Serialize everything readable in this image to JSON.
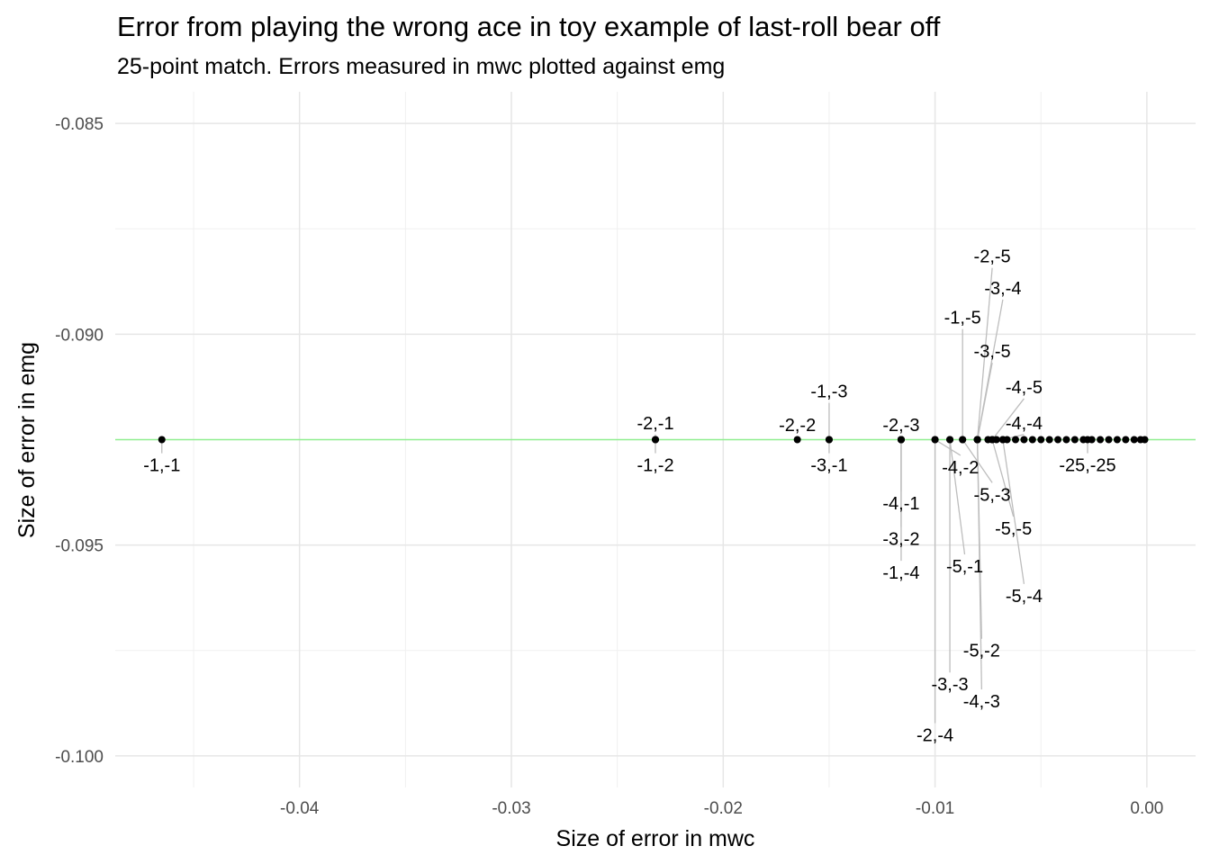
{
  "chart_data": {
    "type": "scatter",
    "title": "Error from playing the wrong ace in toy example of last-roll bear off",
    "subtitle": "25-point match. Errors measured in mwc plotted against emg",
    "xlabel": "Size of error in mwc",
    "ylabel": "Size of error in emg",
    "xlim": [
      -0.0487,
      0.0023
    ],
    "ylim": [
      -0.10075,
      -0.08425
    ],
    "xticks": [
      -0.04,
      -0.03,
      -0.02,
      -0.01,
      0.0
    ],
    "xtick_labels": [
      "-0.04",
      "-0.03",
      "-0.02",
      "-0.01",
      "0.00"
    ],
    "yticks": [
      -0.085,
      -0.09,
      -0.095,
      -0.1
    ],
    "ytick_labels": [
      "-0.085",
      "-0.090",
      "-0.095",
      "-0.100"
    ],
    "reference_line": {
      "y": -0.0925,
      "color": "#90ee90"
    },
    "labeled_points": [
      {
        "label": "-1,-1",
        "x": -0.0465,
        "y": -0.0925,
        "lx": -0.0465,
        "ly": -0.0931
      },
      {
        "label": "-2,-1",
        "x": -0.0232,
        "y": -0.0925,
        "lx": -0.0232,
        "ly": -0.0921
      },
      {
        "label": "-1,-2",
        "x": -0.0232,
        "y": -0.0925,
        "lx": -0.0232,
        "ly": -0.0931
      },
      {
        "label": "-2,-2",
        "x": -0.0165,
        "y": -0.0925,
        "lx": -0.0165,
        "ly": -0.09215
      },
      {
        "label": "-1,-3",
        "x": -0.015,
        "y": -0.0925,
        "lx": -0.015,
        "ly": -0.09135
      },
      {
        "label": "-3,-1",
        "x": -0.015,
        "y": -0.0925,
        "lx": -0.015,
        "ly": -0.0931
      },
      {
        "label": "-2,-3",
        "x": -0.0116,
        "y": -0.0925,
        "lx": -0.0116,
        "ly": -0.09215
      },
      {
        "label": "-4,-1",
        "x": -0.0116,
        "y": -0.0925,
        "lx": -0.0116,
        "ly": -0.094
      },
      {
        "label": "-3,-2",
        "x": -0.0116,
        "y": -0.0925,
        "lx": -0.0116,
        "ly": -0.09485
      },
      {
        "label": "-1,-4",
        "x": -0.0116,
        "y": -0.0925,
        "lx": -0.0116,
        "ly": -0.09565
      },
      {
        "label": "-4,-2",
        "x": -0.01,
        "y": -0.0925,
        "lx": -0.0088,
        "ly": -0.09315
      },
      {
        "label": "-2,-4",
        "x": -0.01,
        "y": -0.0925,
        "lx": -0.01,
        "ly": -0.0995
      },
      {
        "label": "-3,-3",
        "x": -0.0093,
        "y": -0.0925,
        "lx": -0.0093,
        "ly": -0.0983
      },
      {
        "label": "-5,-1",
        "x": -0.0093,
        "y": -0.0925,
        "lx": -0.0086,
        "ly": -0.0955
      },
      {
        "label": "-1,-5",
        "x": -0.0087,
        "y": -0.0925,
        "lx": -0.0087,
        "ly": -0.0896
      },
      {
        "label": "-5,-3",
        "x": -0.0087,
        "y": -0.0925,
        "lx": -0.0073,
        "ly": -0.0938
      },
      {
        "label": "-2,-5",
        "x": -0.008,
        "y": -0.0925,
        "lx": -0.0073,
        "ly": -0.08815
      },
      {
        "label": "-3,-4",
        "x": -0.008,
        "y": -0.0925,
        "lx": -0.0068,
        "ly": -0.0889
      },
      {
        "label": "-3,-5",
        "x": -0.008,
        "y": -0.0925,
        "lx": -0.0073,
        "ly": -0.0904
      },
      {
        "label": "-4,-3",
        "x": -0.008,
        "y": -0.0925,
        "lx": -0.0078,
        "ly": -0.0987
      },
      {
        "label": "-5,-2",
        "x": -0.008,
        "y": -0.0925,
        "lx": -0.0078,
        "ly": -0.0975
      },
      {
        "label": "-4,-5",
        "x": -0.0073,
        "y": -0.0925,
        "lx": -0.0058,
        "ly": -0.09125
      },
      {
        "label": "-5,-5",
        "x": -0.0073,
        "y": -0.0925,
        "lx": -0.0063,
        "ly": -0.0946
      },
      {
        "label": "-5,-4",
        "x": -0.0068,
        "y": -0.0925,
        "lx": -0.0058,
        "ly": -0.0962
      },
      {
        "label": "-4,-4",
        "x": -0.0068,
        "y": -0.0925,
        "lx": -0.0058,
        "ly": -0.0921
      },
      {
        "label": "-25,-25",
        "x": -0.0028,
        "y": -0.0925,
        "lx": -0.0028,
        "ly": -0.0931
      }
    ],
    "extra_points": {
      "y": -0.0925,
      "x": [
        -0.0075,
        -0.0071,
        -0.0066,
        -0.0062,
        -0.0058,
        -0.0054,
        -0.005,
        -0.0046,
        -0.0042,
        -0.0038,
        -0.0034,
        -0.003,
        -0.0026,
        -0.0022,
        -0.0018,
        -0.0014,
        -0.001,
        -0.0006,
        -0.0003,
        -0.0001
      ]
    }
  }
}
